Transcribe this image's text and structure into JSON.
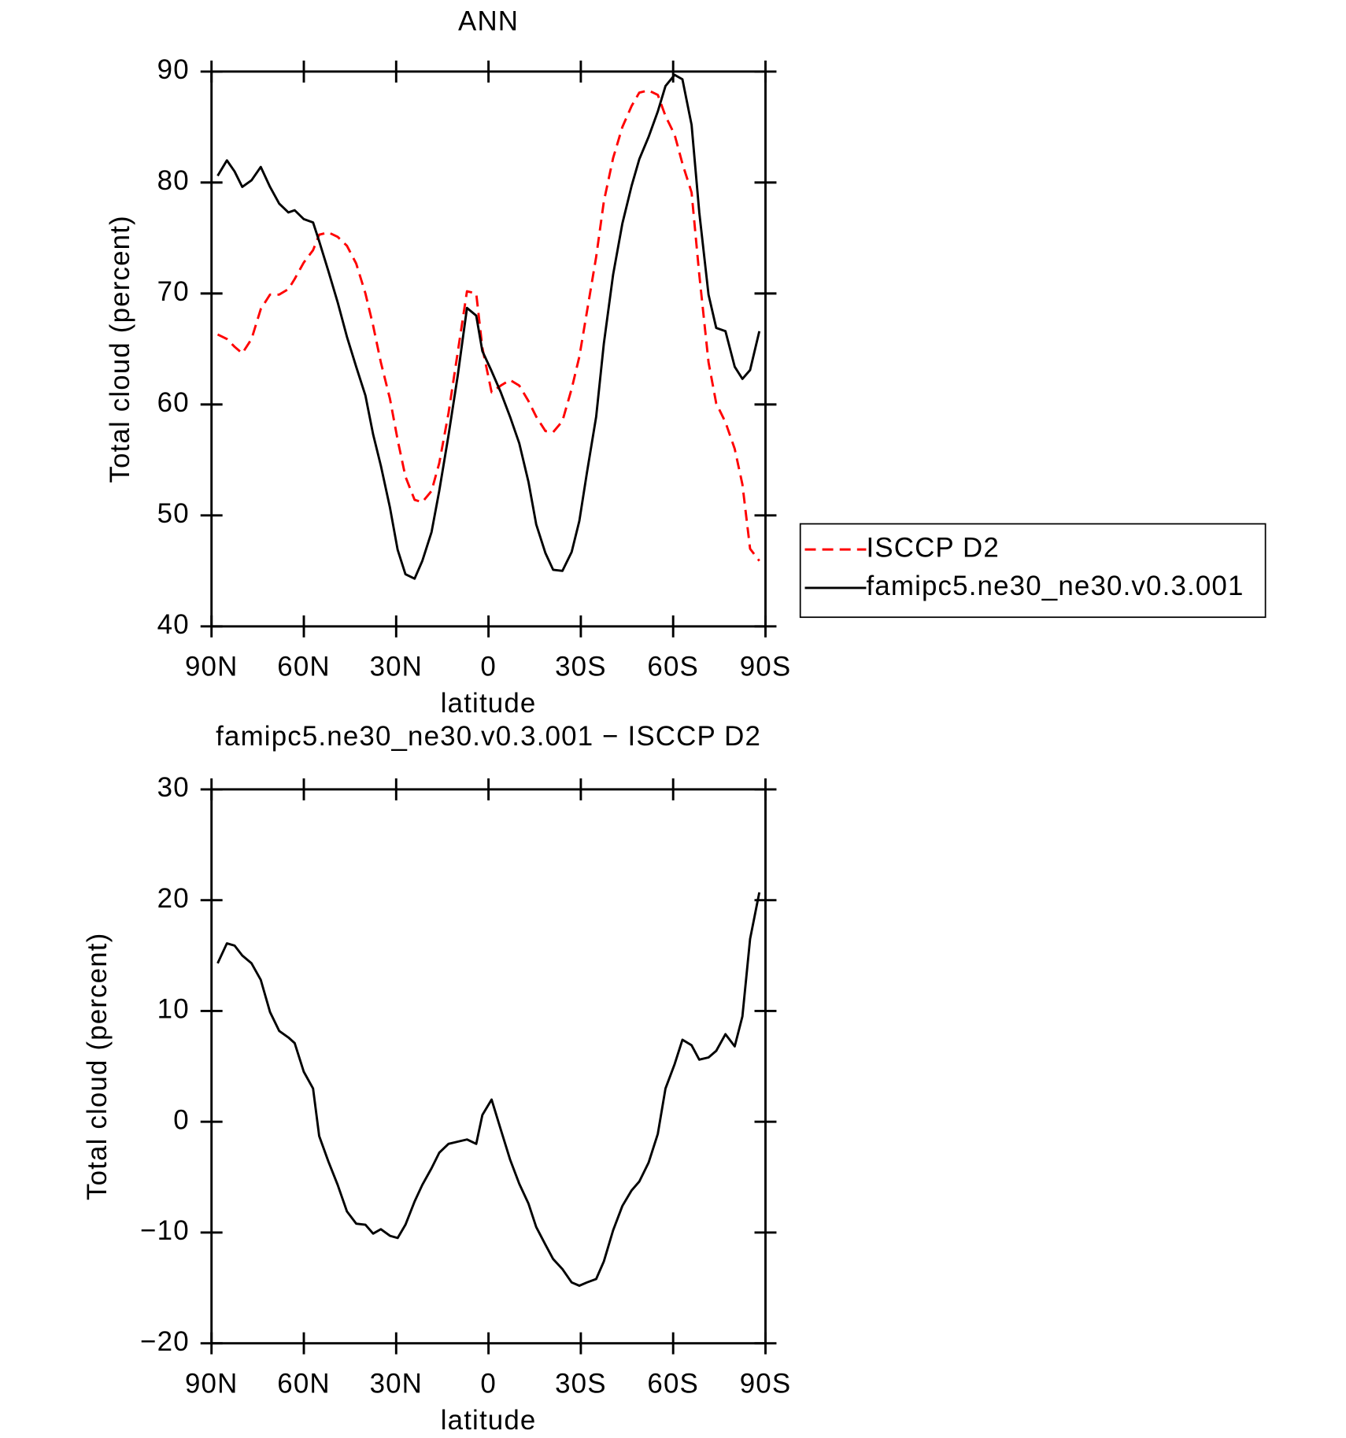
{
  "chart_data": [
    {
      "type": "line",
      "title": "ANN",
      "xlabel": "latitude",
      "ylabel": "Total cloud (percent)",
      "xlim": [
        90,
        -90
      ],
      "ylim": [
        40,
        90
      ],
      "xticks": [
        {
          "value": 90,
          "label": "90N"
        },
        {
          "value": 60,
          "label": "60N"
        },
        {
          "value": 30,
          "label": "30N"
        },
        0,
        {
          "value": -30,
          "label": "30S"
        },
        {
          "value": -60,
          "label": "60S"
        },
        {
          "value": -90,
          "label": "90S"
        }
      ],
      "yticks": [
        40,
        50,
        60,
        70,
        80,
        90
      ],
      "legend": "right",
      "x": [
        88,
        85,
        82.5,
        80,
        77,
        74,
        71,
        68,
        65,
        63,
        60,
        57,
        55,
        52,
        49,
        46,
        43,
        40,
        37.5,
        35,
        32,
        29.5,
        27,
        24,
        21.5,
        18.5,
        16,
        13,
        10,
        7,
        4,
        2,
        -1,
        -4,
        -7,
        -10,
        -13,
        -15.5,
        -18.5,
        -21,
        -24,
        -27,
        -29.5,
        -32,
        -35,
        -37.5,
        -40.5,
        -43.5,
        -46.5,
        -49,
        -52,
        -55,
        -57.5,
        -60.5,
        -63,
        -66,
        -68.5,
        -71.5,
        -74,
        -77,
        -80,
        -82.5,
        -85,
        -88
      ],
      "series": [
        {
          "name": "ISCCP D2",
          "color": "#ff0000",
          "style": "dashed",
          "values": [
            66.3,
            65.9,
            65.2,
            64.6,
            65.9,
            68.6,
            69.9,
            69.9,
            70.4,
            71.3,
            72.8,
            73.9,
            75.3,
            75.5,
            75.1,
            74.3,
            72.7,
            70.0,
            67.1,
            63.8,
            60.5,
            56.8,
            53.5,
            51.4,
            51.2,
            52.2,
            54.7,
            59.2,
            64.7,
            70.2,
            70.0,
            65.1,
            61.1,
            61.7,
            62.2,
            61.7,
            60.3,
            58.9,
            57.6,
            57.5,
            58.5,
            61.4,
            64.3,
            68.4,
            73.3,
            78.3,
            82.2,
            85.0,
            86.9,
            88.1,
            88.3,
            87.9,
            86.0,
            84.3,
            81.7,
            79.1,
            71.7,
            63.8,
            60.1,
            58.4,
            56.0,
            52.8,
            47.0,
            45.9
          ]
        },
        {
          "name": "famipc5.ne30_ne30.v0.3.001",
          "color": "#000000",
          "style": "solid",
          "values": [
            80.6,
            82.0,
            81.0,
            79.6,
            80.2,
            81.4,
            79.6,
            78.1,
            77.3,
            77.5,
            76.7,
            76.4,
            74.7,
            72.0,
            69.2,
            66.1,
            63.4,
            60.8,
            57.3,
            54.5,
            50.7,
            46.9,
            44.7,
            44.3,
            45.9,
            48.5,
            52.2,
            57.2,
            62.6,
            68.7,
            68.0,
            64.8,
            63.0,
            61.1,
            58.9,
            56.5,
            53.0,
            49.2,
            46.6,
            45.1,
            45.0,
            46.7,
            49.5,
            53.9,
            58.9,
            65.5,
            71.7,
            76.3,
            79.7,
            82.1,
            84.1,
            86.4,
            88.7,
            89.7,
            89.3,
            85.2,
            77.3,
            69.9,
            66.9,
            66.6,
            63.4,
            62.3,
            63.1,
            66.6
          ]
        }
      ]
    },
    {
      "type": "line",
      "title": "famipc5.ne30_ne30.v0.3.001 − ISCCP D2",
      "xlabel": "latitude",
      "ylabel": "Total cloud (percent)",
      "xlim": [
        90,
        -90
      ],
      "ylim": [
        -20,
        30
      ],
      "xticks": [
        {
          "value": 90,
          "label": "90N"
        },
        {
          "value": 60,
          "label": "60N"
        },
        {
          "value": 30,
          "label": "30N"
        },
        0,
        {
          "value": -30,
          "label": "30S"
        },
        {
          "value": -60,
          "label": "60S"
        },
        {
          "value": -90,
          "label": "90S"
        }
      ],
      "yticks": [
        {
          "value": -20,
          "label": "−20"
        },
        {
          "value": -10,
          "label": "−10"
        },
        0,
        10,
        20,
        30
      ],
      "x": [
        88,
        85,
        82.5,
        80,
        77,
        74,
        71,
        68,
        65,
        63,
        60,
        57,
        55,
        52,
        49,
        46,
        43,
        40,
        37.5,
        35,
        32,
        29.5,
        27,
        24,
        21.5,
        18.5,
        16,
        13,
        10,
        7,
        4,
        2,
        -1,
        -4,
        -7,
        -10,
        -13,
        -15.5,
        -18.5,
        -21,
        -24,
        -27,
        -29.5,
        -32,
        -35,
        -37.5,
        -40.5,
        -43.5,
        -46.5,
        -49,
        -52,
        -55,
        -57.5,
        -60.5,
        -63,
        -66,
        -68.5,
        -71.5,
        -74,
        -77,
        -80,
        -82.5,
        -85,
        -88
      ],
      "series": [
        {
          "color": "#000000",
          "style": "solid",
          "values": [
            14.3,
            16.1,
            15.9,
            15.0,
            14.3,
            12.8,
            9.9,
            8.2,
            7.6,
            7.1,
            4.5,
            3.0,
            -1.3,
            -3.6,
            -5.7,
            -8.1,
            -9.2,
            -9.3,
            -10.1,
            -9.7,
            -10.3,
            -10.5,
            -9.3,
            -7.2,
            -5.7,
            -4.2,
            -2.8,
            -2.0,
            -1.8,
            -1.6,
            -2.0,
            0.6,
            2.0,
            -0.7,
            -3.4,
            -5.6,
            -7.4,
            -9.5,
            -11.1,
            -12.4,
            -13.3,
            -14.5,
            -14.8,
            -14.5,
            -14.2,
            -12.6,
            -9.8,
            -7.6,
            -6.2,
            -5.4,
            -3.7,
            -1.1,
            3.0,
            5.2,
            7.4,
            6.9,
            5.6,
            5.8,
            6.4,
            7.9,
            6.8,
            9.5,
            16.5,
            20.7
          ]
        }
      ]
    }
  ]
}
